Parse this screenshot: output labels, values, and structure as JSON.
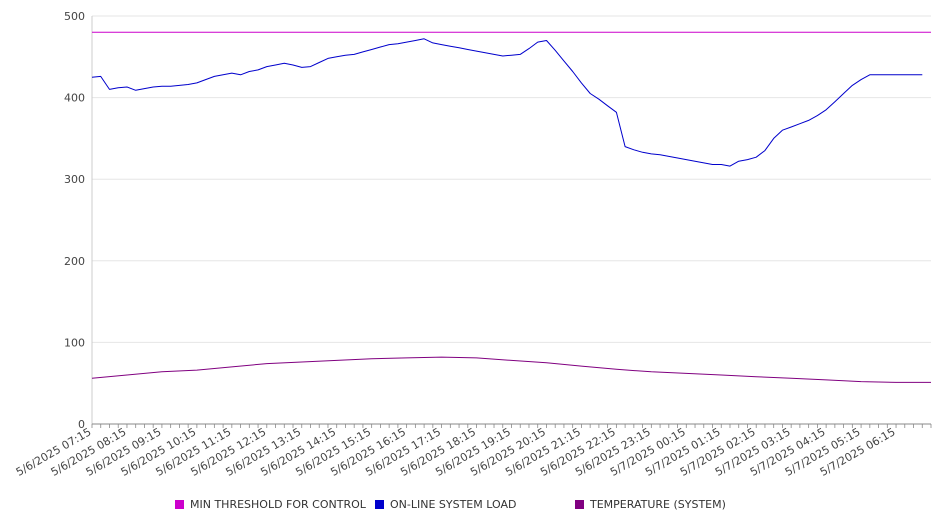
{
  "chart_data": {
    "type": "line",
    "title": "",
    "xlabel": "",
    "ylabel": "",
    "ylim": [
      0,
      500
    ],
    "yticks": [
      0,
      100,
      200,
      300,
      400,
      500
    ],
    "x_tick_labels": [
      "5/6/2025 07:15",
      "5/6/2025 08:15",
      "5/6/2025 09:15",
      "5/6/2025 10:15",
      "5/6/2025 11:15",
      "5/6/2025 12:15",
      "5/6/2025 13:15",
      "5/6/2025 14:15",
      "5/6/2025 15:15",
      "5/6/2025 16:15",
      "5/6/2025 17:15",
      "5/6/2025 18:15",
      "5/6/2025 19:15",
      "5/6/2025 20:15",
      "5/6/2025 21:15",
      "5/6/2025 22:15",
      "5/6/2025 23:15",
      "5/7/2025 00:15",
      "5/7/2025 01:15",
      "5/7/2025 02:15",
      "5/7/2025 03:15",
      "5/7/2025 04:15",
      "5/7/2025 05:15",
      "5/7/2025 06:15"
    ],
    "grid": "horizontal",
    "legend_position": "bottom",
    "series": [
      {
        "name": "MIN THRESHOLD FOR CONTROL",
        "color": "#cc00cc",
        "x": [
          "5/6/2025 07:15",
          "5/7/2025 07:15"
        ],
        "values": [
          480,
          480
        ]
      },
      {
        "name": "ON-LINE SYSTEM LOAD",
        "color": "#0000cc",
        "x": [
          "5/6/2025 07:15",
          "5/6/2025 07:30",
          "5/6/2025 07:45",
          "5/6/2025 08:00",
          "5/6/2025 08:15",
          "5/6/2025 08:30",
          "5/6/2025 08:45",
          "5/6/2025 09:00",
          "5/6/2025 09:15",
          "5/6/2025 09:30",
          "5/6/2025 09:45",
          "5/6/2025 10:00",
          "5/6/2025 10:15",
          "5/6/2025 10:30",
          "5/6/2025 10:45",
          "5/6/2025 11:00",
          "5/6/2025 11:15",
          "5/6/2025 11:30",
          "5/6/2025 11:45",
          "5/6/2025 12:00",
          "5/6/2025 12:15",
          "5/6/2025 12:30",
          "5/6/2025 12:45",
          "5/6/2025 13:00",
          "5/6/2025 13:15",
          "5/6/2025 13:30",
          "5/6/2025 13:45",
          "5/6/2025 14:00",
          "5/6/2025 14:15",
          "5/6/2025 14:30",
          "5/6/2025 14:45",
          "5/6/2025 15:00",
          "5/6/2025 15:15",
          "5/6/2025 15:30",
          "5/6/2025 15:45",
          "5/6/2025 16:00",
          "5/6/2025 16:15",
          "5/6/2025 16:30",
          "5/6/2025 16:45",
          "5/6/2025 17:00",
          "5/6/2025 17:15",
          "5/6/2025 17:30",
          "5/6/2025 17:45",
          "5/6/2025 18:00",
          "5/6/2025 18:15",
          "5/6/2025 18:30",
          "5/6/2025 18:45",
          "5/6/2025 19:00",
          "5/6/2025 19:15",
          "5/6/2025 19:30",
          "5/6/2025 19:45",
          "5/6/2025 20:00",
          "5/6/2025 20:15",
          "5/6/2025 20:30",
          "5/6/2025 20:45",
          "5/6/2025 21:00",
          "5/6/2025 21:15",
          "5/6/2025 21:30",
          "5/6/2025 21:45",
          "5/6/2025 22:00",
          "5/6/2025 22:15",
          "5/6/2025 22:30",
          "5/6/2025 22:45",
          "5/6/2025 23:00",
          "5/6/2025 23:15",
          "5/6/2025 23:30",
          "5/6/2025 23:45",
          "5/7/2025 00:00",
          "5/7/2025 00:15",
          "5/7/2025 00:30",
          "5/7/2025 00:45",
          "5/7/2025 01:00",
          "5/7/2025 01:15",
          "5/7/2025 01:30",
          "5/7/2025 01:45",
          "5/7/2025 02:00",
          "5/7/2025 02:15",
          "5/7/2025 02:30",
          "5/7/2025 02:45",
          "5/7/2025 03:00",
          "5/7/2025 03:15",
          "5/7/2025 03:30",
          "5/7/2025 03:45",
          "5/7/2025 04:00",
          "5/7/2025 04:15",
          "5/7/2025 04:30",
          "5/7/2025 04:45",
          "5/7/2025 05:00",
          "5/7/2025 05:15",
          "5/7/2025 05:30",
          "5/7/2025 05:45",
          "5/7/2025 06:00",
          "5/7/2025 06:15",
          "5/7/2025 06:30",
          "5/7/2025 06:45",
          "5/7/2025 07:00"
        ],
        "values": [
          425,
          426,
          410,
          412,
          413,
          409,
          411,
          413,
          414,
          414,
          415,
          416,
          418,
          422,
          426,
          428,
          430,
          428,
          432,
          434,
          438,
          440,
          442,
          440,
          437,
          438,
          443,
          448,
          450,
          452,
          453,
          456,
          459,
          462,
          465,
          466,
          468,
          470,
          472,
          467,
          465,
          463,
          461,
          459,
          457,
          455,
          453,
          451,
          452,
          453,
          460,
          468,
          470,
          458,
          445,
          432,
          418,
          405,
          398,
          390,
          382,
          340,
          336,
          333,
          331,
          330,
          328,
          326,
          324,
          322,
          320,
          318,
          318,
          316,
          322,
          324,
          327,
          335,
          350,
          360,
          364,
          368,
          372,
          378,
          385,
          395,
          405,
          415,
          422,
          428,
          428,
          428,
          428,
          428,
          428,
          428
        ]
      },
      {
        "name": "TEMPERATURE (SYSTEM)",
        "color": "#800080",
        "x": [
          "5/6/2025 07:15",
          "5/6/2025 08:15",
          "5/6/2025 09:15",
          "5/6/2025 10:15",
          "5/6/2025 11:15",
          "5/6/2025 12:15",
          "5/6/2025 13:15",
          "5/6/2025 14:15",
          "5/6/2025 15:15",
          "5/6/2025 16:15",
          "5/6/2025 17:15",
          "5/6/2025 18:15",
          "5/6/2025 19:15",
          "5/6/2025 20:15",
          "5/6/2025 21:15",
          "5/6/2025 22:15",
          "5/6/2025 23:15",
          "5/7/2025 00:15",
          "5/7/2025 01:15",
          "5/7/2025 02:15",
          "5/7/2025 03:15",
          "5/7/2025 04:15",
          "5/7/2025 05:15",
          "5/7/2025 06:15",
          "5/7/2025 07:15"
        ],
        "values": [
          56,
          60,
          64,
          66,
          70,
          74,
          76,
          78,
          80,
          81,
          82,
          81,
          78,
          75,
          71,
          67,
          64,
          62,
          60,
          58,
          56,
          54,
          52,
          51,
          51
        ]
      }
    ]
  }
}
